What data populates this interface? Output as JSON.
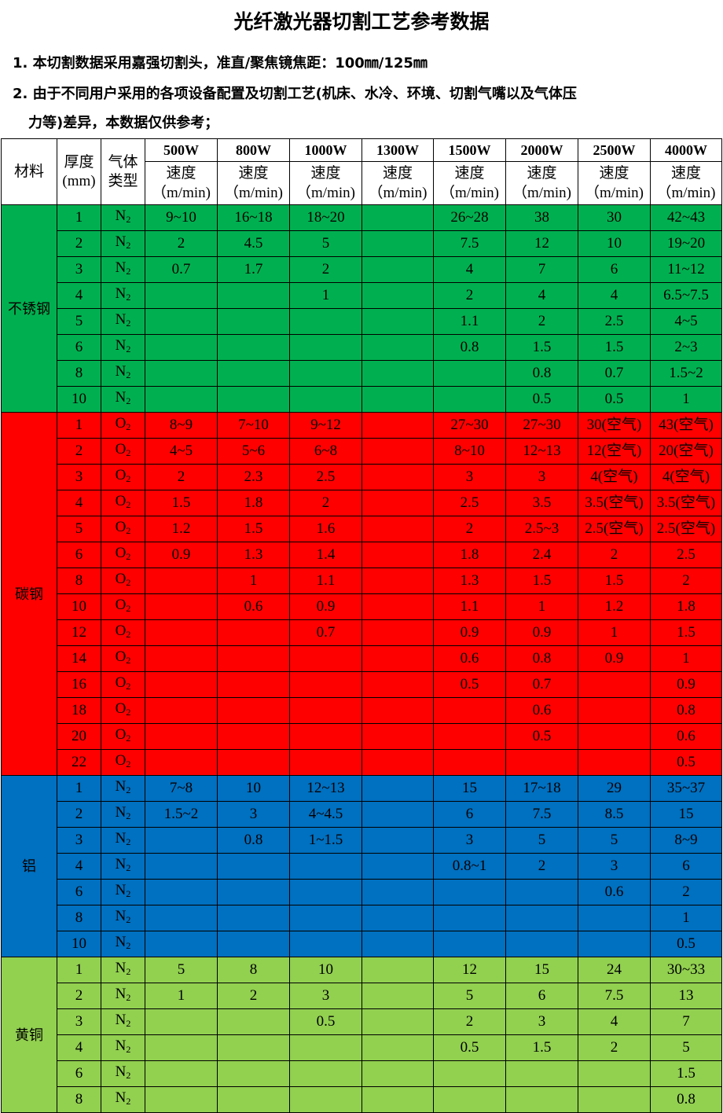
{
  "title": "光纤激光器切割工艺参考数据",
  "notes": [
    "1. 本切割数据采用嘉强切割头，准直/聚焦镜焦距：100㎜/125㎜",
    "2. 由于不同用户采用的各项设备配置及切割工艺(机床、水冷、环境、切割气嘴以及气体压",
    "力等)差异，本数据仅供参考；"
  ],
  "table": {
    "headers": {
      "material": "材料",
      "thickness": "厚度",
      "thickness_unit": "(mm)",
      "gas": "气体",
      "gas2": "类型",
      "speed": "速度",
      "speed_unit": "（m/min)",
      "powers": [
        "500W",
        "800W",
        "1000W",
        "1300W",
        "1500W",
        "2000W",
        "2500W",
        "4000W"
      ]
    },
    "groups": [
      {
        "material": "不锈钢",
        "color": "#00b050",
        "gas": "N",
        "gas_sub": "2",
        "rows": [
          [
            "1",
            [
              "9~10",
              "16~18",
              "18~20",
              "",
              "26~28",
              "38",
              "30",
              "42~43"
            ]
          ],
          [
            "2",
            [
              "2",
              "4.5",
              "5",
              "",
              "7.5",
              "12",
              "10",
              "19~20"
            ]
          ],
          [
            "3",
            [
              "0.7",
              "1.7",
              "2",
              "",
              "4",
              "7",
              "6",
              "11~12"
            ]
          ],
          [
            "4",
            [
              "",
              "",
              "1",
              "",
              "2",
              "4",
              "4",
              "6.5~7.5"
            ]
          ],
          [
            "5",
            [
              "",
              "",
              "",
              "",
              "1.1",
              "2",
              "2.5",
              "4~5"
            ]
          ],
          [
            "6",
            [
              "",
              "",
              "",
              "",
              "0.8",
              "1.5",
              "1.5",
              "2~3"
            ]
          ],
          [
            "8",
            [
              "",
              "",
              "",
              "",
              "",
              "0.8",
              "0.7",
              "1.5~2"
            ]
          ],
          [
            "10",
            [
              "",
              "",
              "",
              "",
              "",
              "0.5",
              "0.5",
              "1"
            ]
          ]
        ]
      },
      {
        "material": "碳钢",
        "color": "#ff0000",
        "gas": "O",
        "gas_sub": "2",
        "rows": [
          [
            "1",
            [
              "8~9",
              "7~10",
              "9~12",
              "",
              "27~30",
              "27~30",
              "30(空气)",
              "43(空气)"
            ]
          ],
          [
            "2",
            [
              "4~5",
              "5~6",
              "6~8",
              "",
              "8~10",
              "12~13",
              "12(空气)",
              "20(空气)"
            ]
          ],
          [
            "3",
            [
              "2",
              "2.3",
              "2.5",
              "",
              "3",
              "3",
              "4(空气)",
              "4(空气)"
            ]
          ],
          [
            "4",
            [
              "1.5",
              "1.8",
              "2",
              "",
              "2.5",
              "3.5",
              "3.5(空气)",
              "3.5(空气)"
            ]
          ],
          [
            "5",
            [
              "1.2",
              "1.5",
              "1.6",
              "",
              "2",
              "2.5~3",
              "2.5(空气)",
              "2.5(空气)"
            ]
          ],
          [
            "6",
            [
              "0.9",
              "1.3",
              "1.4",
              "",
              "1.8",
              "2.4",
              "2",
              "2.5"
            ]
          ],
          [
            "8",
            [
              "",
              "1",
              "1.1",
              "",
              "1.3",
              "1.5",
              "1.5",
              "2"
            ]
          ],
          [
            "10",
            [
              "",
              "0.6",
              "0.9",
              "",
              "1.1",
              "1",
              "1.2",
              "1.8"
            ]
          ],
          [
            "12",
            [
              "",
              "",
              "0.7",
              "",
              "0.9",
              "0.9",
              "1",
              "1.5"
            ]
          ],
          [
            "14",
            [
              "",
              "",
              "",
              "",
              "0.6",
              "0.8",
              "0.9",
              "1"
            ]
          ],
          [
            "16",
            [
              "",
              "",
              "",
              "",
              "0.5",
              "0.7",
              "",
              "0.9"
            ]
          ],
          [
            "18",
            [
              "",
              "",
              "",
              "",
              "",
              "0.6",
              "",
              "0.8"
            ]
          ],
          [
            "20",
            [
              "",
              "",
              "",
              "",
              "",
              "0.5",
              "",
              "0.6"
            ]
          ],
          [
            "22",
            [
              "",
              "",
              "",
              "",
              "",
              "",
              "",
              "0.5"
            ]
          ]
        ]
      },
      {
        "material": "铝",
        "color": "#0070c0",
        "gas": "N",
        "gas_sub": "2",
        "rows": [
          [
            "1",
            [
              "7~8",
              "10",
              "12~13",
              "",
              "15",
              "17~18",
              "29",
              "35~37"
            ]
          ],
          [
            "2",
            [
              "1.5~2",
              "3",
              "4~4.5",
              "",
              "6",
              "7.5",
              "8.5",
              "15"
            ]
          ],
          [
            "3",
            [
              "",
              "0.8",
              "1~1.5",
              "",
              "3",
              "5",
              "5",
              "8~9"
            ]
          ],
          [
            "4",
            [
              "",
              "",
              "",
              "",
              "0.8~1",
              "2",
              "3",
              "6"
            ]
          ],
          [
            "6",
            [
              "",
              "",
              "",
              "",
              "",
              "",
              "0.6",
              "2"
            ]
          ],
          [
            "8",
            [
              "",
              "",
              "",
              "",
              "",
              "",
              "",
              "1"
            ]
          ],
          [
            "10",
            [
              "",
              "",
              "",
              "",
              "",
              "",
              "",
              "0.5"
            ]
          ]
        ]
      },
      {
        "material": "黄铜",
        "color": "#92d050",
        "gas": "N",
        "gas_sub": "2",
        "rows": [
          [
            "1",
            [
              "5",
              "8",
              "10",
              "",
              "12",
              "15",
              "24",
              "30~33"
            ]
          ],
          [
            "2",
            [
              "1",
              "2",
              "3",
              "",
              "5",
              "6",
              "7.5",
              "13"
            ]
          ],
          [
            "3",
            [
              "",
              "",
              "0.5",
              "",
              "2",
              "3",
              "4",
              "7"
            ]
          ],
          [
            "4",
            [
              "",
              "",
              "",
              "",
              "0.5",
              "1.5",
              "2",
              "5"
            ]
          ],
          [
            "6",
            [
              "",
              "",
              "",
              "",
              "",
              "",
              "",
              "1.5"
            ]
          ],
          [
            "8",
            [
              "",
              "",
              "",
              "",
              "",
              "",
              "",
              "0.8"
            ]
          ]
        ]
      }
    ]
  }
}
